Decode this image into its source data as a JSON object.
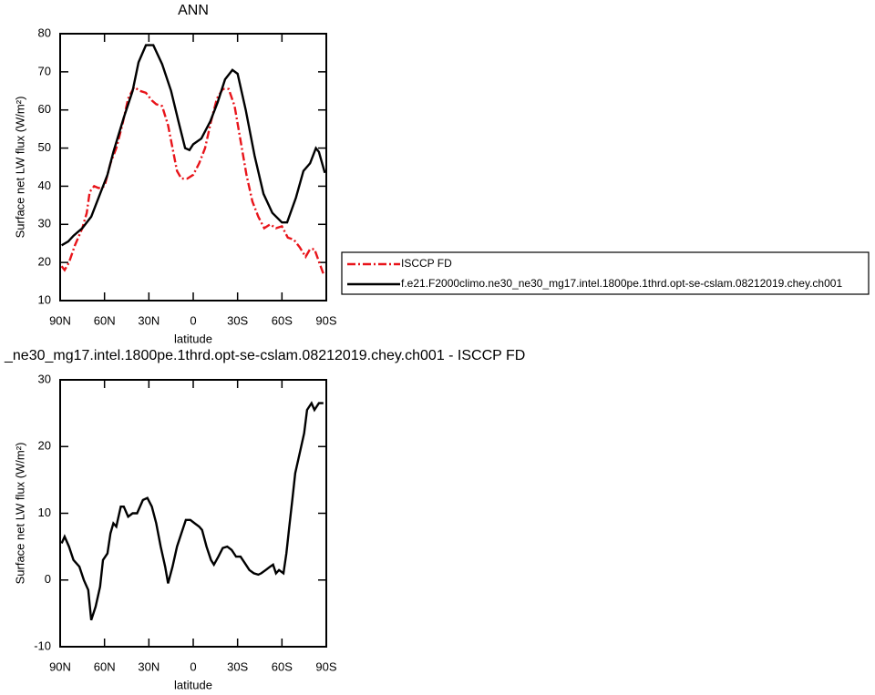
{
  "chart_data": [
    {
      "type": "line",
      "title": "ANN",
      "x_label": "latitude",
      "y_label": "Surface net LW flux (W/m²)",
      "xlim": [
        90,
        -90
      ],
      "xticks": [
        {
          "value": 90,
          "label": "90N"
        },
        {
          "value": 60,
          "label": "60N"
        },
        {
          "value": 30,
          "label": "30N"
        },
        0,
        {
          "value": -30,
          "label": "30S"
        },
        {
          "value": -60,
          "label": "60S"
        },
        {
          "value": -90,
          "label": "90S"
        }
      ],
      "ylim": [
        10,
        80
      ],
      "yticks": [
        10,
        20,
        30,
        40,
        50,
        60,
        70,
        80
      ],
      "legend": "right",
      "series": [
        {
          "name": "ISCCP FD",
          "color": "#e8141a",
          "dash": true,
          "x": [
            89,
            87,
            84,
            80,
            75,
            72,
            70,
            67,
            64,
            60,
            56,
            52,
            48,
            44,
            40,
            36,
            32,
            28,
            25,
            21,
            17,
            14,
            11,
            8,
            4,
            0,
            -4,
            -8,
            -12,
            -16,
            -20,
            -24,
            -28,
            -32,
            -36,
            -40,
            -44,
            -48,
            -52,
            -56,
            -60,
            -64,
            -68,
            -72,
            -76,
            -79,
            -82,
            -88
          ],
          "values": [
            19,
            18,
            20,
            24.5,
            29,
            33,
            38.5,
            40,
            39.5,
            40,
            46,
            50,
            56,
            63,
            66,
            65,
            64.5,
            62.5,
            61.5,
            61,
            56,
            50,
            44,
            42,
            42,
            43,
            46,
            50,
            57,
            63,
            65.5,
            65.5,
            61,
            52,
            43,
            36,
            32,
            29,
            30,
            29,
            29.5,
            26.5,
            26,
            24,
            21.5,
            23.5,
            23.5,
            17
          ]
        },
        {
          "name": "f.e21.F2000climo.ne30_ne30_mg17.intel.1800pe.1thrd.opt-se-cslam.08212019.chey.ch001",
          "color": "#000000",
          "dash": false,
          "x": [
            89,
            84.5,
            81,
            75,
            69,
            63,
            58,
            54,
            47,
            41,
            37,
            32,
            27,
            21,
            15,
            10,
            5.5,
            2.5,
            0,
            -5.5,
            -11.5,
            -16.5,
            -21.5,
            -26.5,
            -30,
            -35.5,
            -41.5,
            -47.5,
            -53.5,
            -60,
            -63.5,
            -69.5,
            -74.5,
            -79,
            -83,
            -85,
            -89
          ],
          "values": [
            24.5,
            25.5,
            27,
            29,
            32,
            38,
            43,
            49,
            58,
            65,
            72.5,
            77,
            77,
            72,
            65,
            57,
            50,
            49.5,
            51,
            52.5,
            57,
            62,
            68,
            70.5,
            69.5,
            60,
            48,
            38,
            33,
            30.5,
            30.5,
            37,
            44,
            46,
            50,
            49,
            43.5
          ]
        }
      ]
    },
    {
      "type": "line",
      "title": "_ne30_mg17.intel.1800pe.1thrd.opt-se-cslam.08212019.chey.ch001 - ISCCP FD",
      "x_label": "latitude",
      "y_label": "Surface net LW flux (W/m²)",
      "xlim": [
        90,
        -90
      ],
      "xticks": [
        {
          "value": 90,
          "label": "90N"
        },
        {
          "value": 60,
          "label": "60N"
        },
        {
          "value": 30,
          "label": "30N"
        },
        0,
        {
          "value": -30,
          "label": "30S"
        },
        {
          "value": -60,
          "label": "60S"
        },
        {
          "value": -90,
          "label": "90S"
        }
      ],
      "ylim": [
        -10,
        30
      ],
      "yticks": [
        -10,
        0,
        10,
        20,
        30
      ],
      "series": [
        {
          "color": "#000000",
          "dash": false,
          "x": [
            89,
            87,
            84,
            81,
            77,
            74,
            71,
            69,
            66,
            63,
            61,
            58,
            56,
            54,
            52,
            49,
            47,
            44,
            41,
            38,
            34,
            31,
            28,
            25,
            22,
            19,
            17,
            14,
            11,
            8,
            5,
            2,
            -1,
            -4,
            -6,
            -9,
            -12,
            -14,
            -17,
            -20,
            -23,
            -26,
            -29,
            -32,
            -35,
            -38,
            -41,
            -44,
            -46,
            -49,
            -52,
            -54,
            -56,
            -58,
            -61,
            -63,
            -65,
            -67,
            -69,
            -72,
            -75,
            -77,
            -80,
            -82,
            -85,
            -88
          ],
          "values": [
            5.5,
            6.5,
            5,
            3,
            2,
            0,
            -1.5,
            -6,
            -4,
            -1,
            3,
            4,
            7,
            8.5,
            8,
            11,
            11,
            9.5,
            10,
            10,
            12,
            12.3,
            11,
            8.5,
            5,
            2,
            -0.5,
            2,
            5,
            7,
            9,
            9,
            8.5,
            8,
            7.5,
            5,
            3,
            2.3,
            3.5,
            4.8,
            5,
            4.5,
            3.5,
            3.5,
            2.5,
            1.5,
            1,
            0.8,
            1,
            1.5,
            2,
            2.3,
            1,
            1.5,
            1,
            4,
            8,
            12,
            16,
            19,
            22,
            25.5,
            26.5,
            25.5,
            26.5,
            26.5
          ]
        }
      ]
    }
  ]
}
